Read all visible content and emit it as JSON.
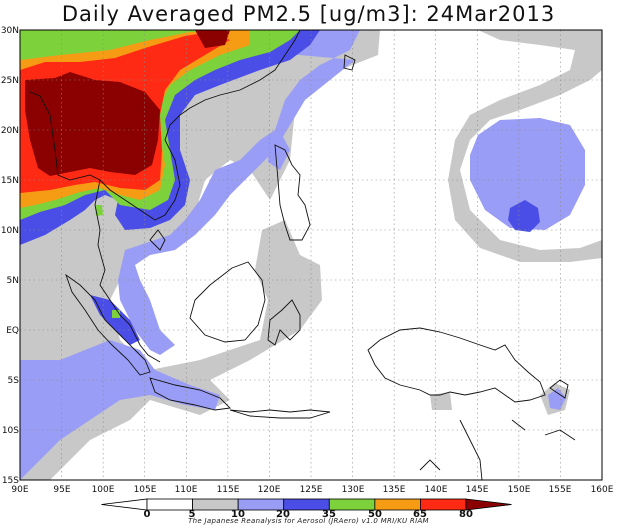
{
  "title": "Daily Averaged PM2.5 [ug/m3]: 24Mar2013",
  "lat_labels": [
    "30N",
    "25N",
    "20N",
    "15N",
    "10N",
    "5N",
    "EQ",
    "5S",
    "10S",
    "15S"
  ],
  "lon_labels": [
    "90E",
    "95E",
    "100E",
    "105E",
    "110E",
    "115E",
    "120E",
    "125E",
    "130E",
    "135E",
    "140E",
    "145E",
    "150E",
    "155E",
    "160E"
  ],
  "colorbar": {
    "levels": [
      "0",
      "5",
      "10",
      "20",
      "35",
      "50",
      "65",
      "80"
    ],
    "colors": [
      "#ffffff",
      "#ffffff",
      "#c8c8c8",
      "#9a9df5",
      "#4a4ee6",
      "#7dd23c",
      "#f59b14",
      "#ff2a14",
      "#8b0000"
    ]
  },
  "credit": "The Japanese Reanalysis for Aerosol (JRAero) v1.0 MRI/KU RIAM"
}
